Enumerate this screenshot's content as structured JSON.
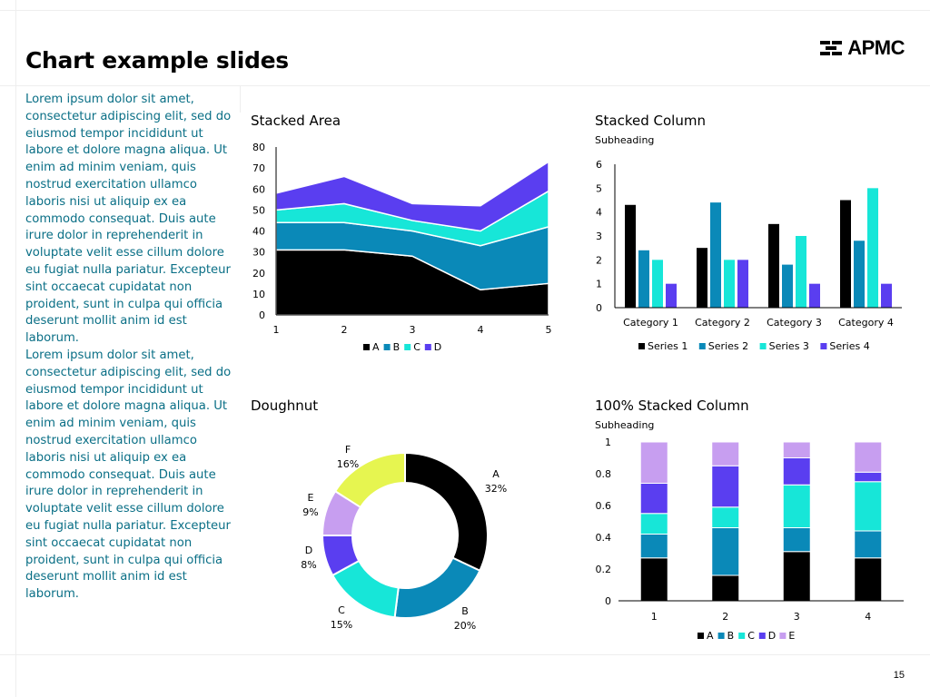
{
  "title": "Chart example slides",
  "logo": {
    "text": "APMC"
  },
  "body_paragraphs": [
    "Lorem ipsum dolor sit amet, consectetur adipiscing elit, sed do eiusmod tempor incididunt ut labore et dolore magna aliqua. Ut enim ad minim veniam, quis nostrud exercitation ullamco laboris nisi ut aliquip ex ea commodo consequat. Duis aute irure dolor in reprehenderit in voluptate velit esse cillum dolore eu fugiat nulla pariatur. Excepteur sint occaecat cupidatat non proident, sunt in culpa qui officia deserunt mollit anim id est laborum.",
    "Lorem ipsum dolor sit amet, consectetur adipiscing elit, sed do eiusmod tempor incididunt ut labore et dolore magna aliqua. Ut enim ad minim veniam, quis nostrud exercitation ullamco laboris nisi ut aliquip ex ea commodo consequat. Duis aute irure dolor in reprehenderit in voluptate velit esse cillum dolore eu fugiat nulla pariatur. Excepteur sint occaecat cupidatat non proident, sunt in culpa qui officia deserunt mollit anim id est laborum."
  ],
  "page_number": "15",
  "colors": {
    "black": "#000000",
    "teal": "#0a89b8",
    "cyan": "#17e6d8",
    "purple": "#5a3ef0",
    "lavender": "#c79ef0",
    "lime": "#e6f550",
    "text_teal": "#0a6f86"
  },
  "chart_data": [
    {
      "type": "area",
      "stacked": true,
      "title": "Stacked Area",
      "x": [
        1,
        2,
        3,
        4,
        5
      ],
      "x_ticks": [
        "1",
        "2",
        "3",
        "4",
        "5"
      ],
      "ylim": [
        0,
        80
      ],
      "y_ticks": [
        "0",
        "10",
        "20",
        "30",
        "40",
        "50",
        "60",
        "70",
        "80"
      ],
      "series": [
        {
          "name": "A",
          "color": "#000000",
          "values": [
            31,
            31,
            28,
            12,
            15
          ]
        },
        {
          "name": "B",
          "color": "#0a89b8",
          "values": [
            13,
            13,
            12,
            21,
            27
          ]
        },
        {
          "name": "C",
          "color": "#17e6d8",
          "values": [
            6,
            9,
            5,
            7,
            17
          ]
        },
        {
          "name": "D",
          "color": "#5a3ef0",
          "values": [
            8,
            13,
            8,
            12,
            14
          ]
        }
      ],
      "legend": "bottom"
    },
    {
      "type": "bar",
      "title": "Stacked Column",
      "subtitle": "Subheading",
      "categories": [
        "Category 1",
        "Category 2",
        "Category 3",
        "Category 4"
      ],
      "ylim": [
        0,
        6
      ],
      "y_ticks": [
        "0",
        "1",
        "2",
        "3",
        "4",
        "5",
        "6"
      ],
      "series": [
        {
          "name": "Series 1",
          "color": "#000000",
          "values": [
            4.3,
            2.5,
            3.5,
            4.5
          ]
        },
        {
          "name": "Series 2",
          "color": "#0a89b8",
          "values": [
            2.4,
            4.4,
            1.8,
            2.8
          ]
        },
        {
          "name": "Series 3",
          "color": "#17e6d8",
          "values": [
            2,
            2,
            3,
            5
          ]
        },
        {
          "name": "Series 4",
          "color": "#5a3ef0",
          "values": [
            1,
            2,
            1,
            1
          ]
        }
      ],
      "legend": "bottom"
    },
    {
      "type": "pie",
      "donut": true,
      "title": "Doughnut",
      "slices": [
        {
          "name": "A",
          "value": 32,
          "label": "32%",
          "color": "#000000"
        },
        {
          "name": "B",
          "value": 20,
          "label": "20%",
          "color": "#0a89b8"
        },
        {
          "name": "C",
          "value": 15,
          "label": "15%",
          "color": "#17e6d8"
        },
        {
          "name": "D",
          "value": 8,
          "label": "8%",
          "color": "#5a3ef0"
        },
        {
          "name": "E",
          "value": 9,
          "label": "9%",
          "color": "#c79ef0"
        },
        {
          "name": "F",
          "value": 16,
          "label": "16%",
          "color": "#e6f550"
        }
      ]
    },
    {
      "type": "bar",
      "stacked_percent": true,
      "title": "100% Stacked Column",
      "subtitle": "Subheading",
      "categories": [
        "1",
        "2",
        "3",
        "4"
      ],
      "ylim": [
        0,
        1
      ],
      "y_ticks": [
        "0",
        "0.2",
        "0.4",
        "0.6",
        "0.8",
        "1"
      ],
      "series": [
        {
          "name": "A",
          "color": "#000000",
          "values": [
            0.27,
            0.16,
            0.31,
            0.27
          ]
        },
        {
          "name": "B",
          "color": "#0a89b8",
          "values": [
            0.15,
            0.3,
            0.15,
            0.17
          ]
        },
        {
          "name": "C",
          "color": "#17e6d8",
          "values": [
            0.13,
            0.13,
            0.27,
            0.31
          ]
        },
        {
          "name": "D",
          "color": "#5a3ef0",
          "values": [
            0.19,
            0.26,
            0.17,
            0.06
          ]
        },
        {
          "name": "E",
          "color": "#c79ef0",
          "values": [
            0.26,
            0.15,
            0.1,
            0.19
          ]
        }
      ],
      "legend": "bottom"
    }
  ]
}
